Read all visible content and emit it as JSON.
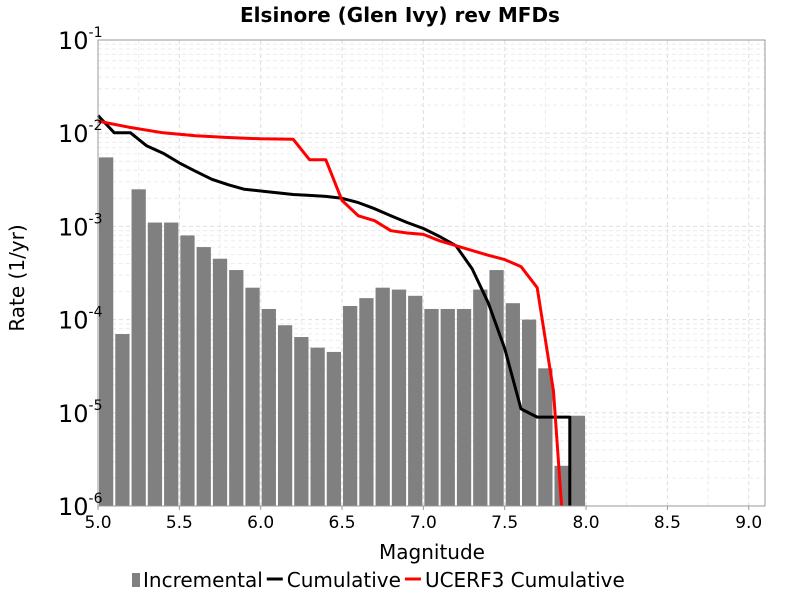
{
  "chart_data": {
    "type": "bar",
    "title": "Elsinore (Glen Ivy) rev MFDs",
    "xlabel": "Magnitude",
    "ylabel": "Rate (1/yr)",
    "xlim": [
      5.0,
      9.1
    ],
    "ylim": [
      1e-06,
      0.1
    ],
    "yscale": "log",
    "grid": true,
    "legend_position": "bottom",
    "x_ticks": [
      "5.0",
      "5.5",
      "6.0",
      "6.5",
      "7.0",
      "7.5",
      "8.0",
      "8.5",
      "9.0"
    ],
    "y_ticks": [
      {
        "base": "10",
        "exp": "-1",
        "value": 0.1
      },
      {
        "base": "10",
        "exp": "-2",
        "value": 0.01
      },
      {
        "base": "10",
        "exp": "-3",
        "value": 0.001
      },
      {
        "base": "10",
        "exp": "-4",
        "value": 0.0001
      },
      {
        "base": "10",
        "exp": "-5",
        "value": 1e-05
      },
      {
        "base": "10",
        "exp": "-6",
        "value": 1e-06
      }
    ],
    "series": [
      {
        "name": "Incremental",
        "type": "bar",
        "color": "#808080",
        "bar_width": 0.1,
        "x": [
          5.05,
          5.15,
          5.25,
          5.35,
          5.45,
          5.55,
          5.65,
          5.75,
          5.85,
          5.95,
          6.05,
          6.15,
          6.25,
          6.35,
          6.45,
          6.55,
          6.65,
          6.75,
          6.85,
          6.95,
          7.05,
          7.15,
          7.25,
          7.35,
          7.45,
          7.55,
          7.65,
          7.75,
          7.85,
          7.95
        ],
        "values": [
          0.0055,
          7e-05,
          0.0025,
          0.0011,
          0.0011,
          0.0008,
          0.0006,
          0.00045,
          0.00034,
          0.00022,
          0.00013,
          8.7e-05,
          6.5e-05,
          5e-05,
          4.5e-05,
          0.00014,
          0.00017,
          0.00022,
          0.00021,
          0.00018,
          0.00013,
          0.00013,
          0.00013,
          0.00021,
          0.00034,
          0.00015,
          0.0001,
          3e-05,
          2.7e-06,
          9.3e-06
        ]
      },
      {
        "name": "Cumulative",
        "type": "line",
        "color": "#000000",
        "x": [
          5.0,
          5.1,
          5.2,
          5.3,
          5.4,
          5.5,
          5.6,
          5.7,
          5.8,
          5.9,
          6.0,
          6.1,
          6.2,
          6.3,
          6.4,
          6.5,
          6.6,
          6.7,
          6.8,
          6.9,
          7.0,
          7.1,
          7.2,
          7.3,
          7.4,
          7.5,
          7.6,
          7.7,
          7.8,
          7.9,
          7.9
        ],
        "values": [
          0.0155,
          0.0101,
          0.0101,
          0.0073,
          0.0061,
          0.0048,
          0.0039,
          0.0032,
          0.0028,
          0.0025,
          0.0024,
          0.0023,
          0.0022,
          0.00215,
          0.0021,
          0.002,
          0.0018,
          0.00155,
          0.0013,
          0.0011,
          0.00095,
          0.00078,
          0.00062,
          0.00035,
          0.00015,
          4.9e-05,
          1.1e-05,
          9e-06,
          9e-06,
          9e-06,
          1e-06
        ]
      },
      {
        "name": "UCERF3 Cumulative",
        "type": "line",
        "color": "#ff0000",
        "x": [
          5.0,
          5.2,
          5.4,
          5.6,
          5.8,
          6.0,
          6.2,
          6.3,
          6.4,
          6.5,
          6.6,
          6.7,
          6.8,
          6.9,
          7.0,
          7.1,
          7.2,
          7.4,
          7.5,
          7.6,
          7.7,
          7.8,
          7.85
        ],
        "values": [
          0.0135,
          0.0115,
          0.0101,
          0.0094,
          0.009,
          0.0087,
          0.0086,
          0.0052,
          0.0052,
          0.0019,
          0.0013,
          0.00115,
          0.0009,
          0.00085,
          0.00082,
          0.0007,
          0.00062,
          0.00049,
          0.00044,
          0.00037,
          0.00022,
          1.7e-05,
          1e-06
        ]
      }
    ]
  }
}
